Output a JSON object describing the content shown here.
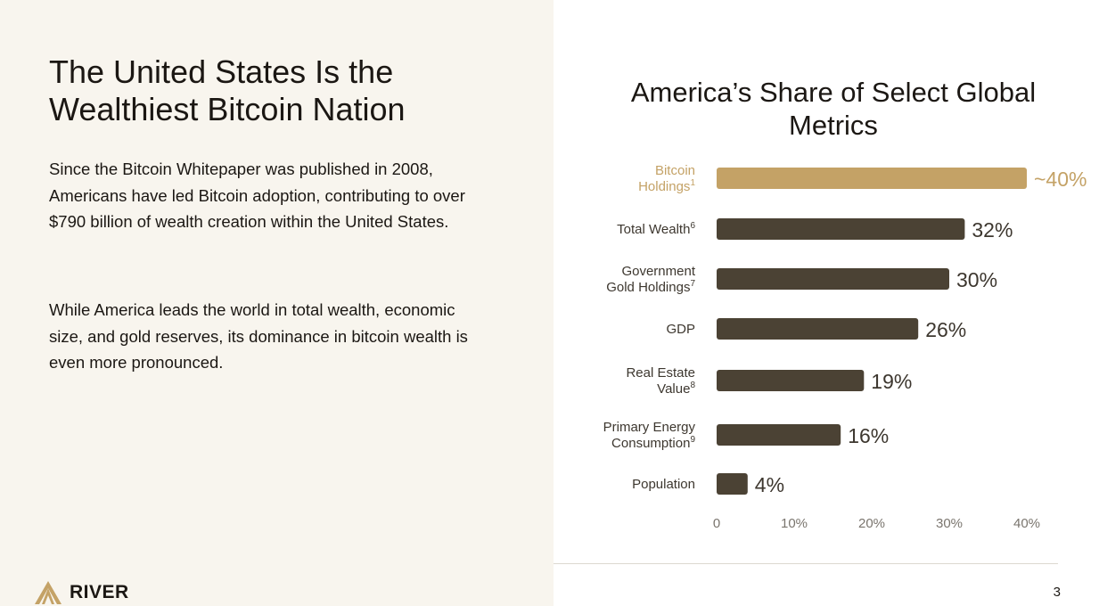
{
  "slide": {
    "headline": "The United States Is the Wealthiest Bitcoin Nation",
    "paragraph_1": "Since the Bitcoin Whitepaper was published in 2008, Americans have led Bitcoin adoption, contributing to over $790 billion of wealth creation within the United States.",
    "paragraph_2": "While America leads the world in total wealth, economic size, and gold reserves, its dominance in bitcoin wealth is even more pronounced.",
    "page_number": "3"
  },
  "brand": {
    "name": "RIVER",
    "logo_icon": "river-mountain-icon"
  },
  "colors": {
    "highlight": "#c4a266",
    "bar": "#4b4234",
    "label": "#3d372f",
    "axis": "#7a756e",
    "left_panel_bg": "#f8f5ee"
  },
  "chart_data": {
    "type": "bar",
    "orientation": "horizontal",
    "title": "America’s Share of Select Global Metrics",
    "categories": [
      {
        "line1": "Bitcoin",
        "line2": "Holdings",
        "sup": "1"
      },
      {
        "line1": "Total Wealth",
        "line2": "",
        "sup": "6"
      },
      {
        "line1": "Government",
        "line2": "Gold Holdings",
        "sup": "7"
      },
      {
        "line1": "GDP",
        "line2": "",
        "sup": ""
      },
      {
        "line1": "Real Estate",
        "line2": "Value",
        "sup": "8"
      },
      {
        "line1": "Primary Energy",
        "line2": "Consumption",
        "sup": "9"
      },
      {
        "line1": "Population",
        "line2": "",
        "sup": ""
      }
    ],
    "values": [
      40,
      32,
      30,
      26,
      19,
      16,
      4
    ],
    "value_labels": [
      "~40%",
      "32%",
      "30%",
      "26%",
      "19%",
      "16%",
      "4%"
    ],
    "highlight_index": 0,
    "xlim": [
      0,
      40
    ],
    "x_ticks": [
      0,
      10,
      20,
      30,
      40
    ],
    "x_tick_labels": [
      "0",
      "10%",
      "20%",
      "30%",
      "40%"
    ],
    "grid": false,
    "legend": "none"
  }
}
